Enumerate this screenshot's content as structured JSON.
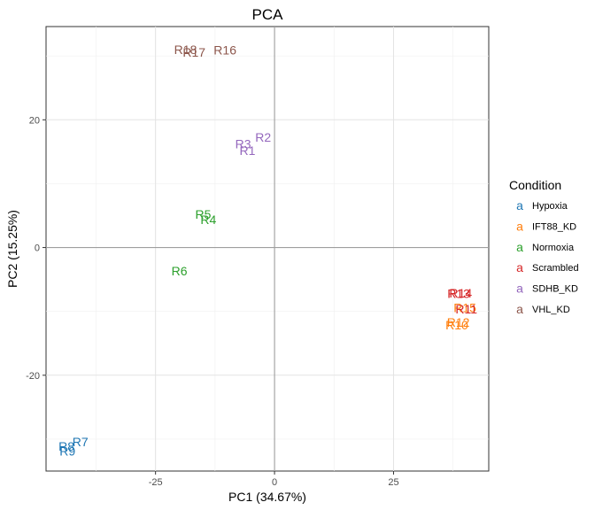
{
  "chart_data": {
    "type": "scatter",
    "title": "PCA",
    "xlabel": "PC1 (34.67%)",
    "ylabel": "PC2 (15.25%)",
    "xlim": [
      -48,
      45
    ],
    "ylim": [
      -35,
      34.6
    ],
    "xticks": [
      -25,
      0,
      25
    ],
    "xtick_labels": [
      "-25",
      "0",
      "25"
    ],
    "yticks": [
      -20,
      0,
      20
    ],
    "ytick_labels": [
      "-20",
      "0",
      "20"
    ],
    "grid": true,
    "zero_lines": true,
    "legend": {
      "title": "Condition",
      "placement": "right",
      "key_glyph": "a"
    },
    "series": [
      {
        "name": "Hypoxia",
        "color": "#1f77b4",
        "points": [
          {
            "label": "R7",
            "x": -40.8,
            "y": -30.4
          },
          {
            "label": "R8",
            "x": -43.7,
            "y": -31.1
          },
          {
            "label": "R9",
            "x": -43.5,
            "y": -31.9
          }
        ]
      },
      {
        "name": "IFT88_KD",
        "color": "#ff7f0e",
        "points": [
          {
            "label": "R10",
            "x": 38.3,
            "y": -12.1
          },
          {
            "label": "R12",
            "x": 38.6,
            "y": -11.7
          },
          {
            "label": "R15",
            "x": 40.0,
            "y": -9.4
          }
        ]
      },
      {
        "name": "Normoxia",
        "color": "#2ca02c",
        "points": [
          {
            "label": "R4",
            "x": -13.9,
            "y": 4.4
          },
          {
            "label": "R5",
            "x": -15.0,
            "y": 5.2
          },
          {
            "label": "R6",
            "x": -20.0,
            "y": -3.7
          }
        ]
      },
      {
        "name": "Scrambled",
        "color": "#d62728",
        "points": [
          {
            "label": "R11",
            "x": 40.3,
            "y": -9.6
          },
          {
            "label": "R13",
            "x": 38.7,
            "y": -7.2
          },
          {
            "label": "R14",
            "x": 39.1,
            "y": -7.1
          }
        ]
      },
      {
        "name": "SDHB_KD",
        "color": "#9467bd",
        "points": [
          {
            "label": "R1",
            "x": -5.7,
            "y": 15.2
          },
          {
            "label": "R2",
            "x": -2.4,
            "y": 17.3
          },
          {
            "label": "R3",
            "x": -6.6,
            "y": 16.2
          }
        ]
      },
      {
        "name": "VHL_KD",
        "color": "#8c564b",
        "points": [
          {
            "label": "R16",
            "x": -10.4,
            "y": 30.9
          },
          {
            "label": "R17",
            "x": -16.9,
            "y": 30.6
          },
          {
            "label": "R18",
            "x": -18.7,
            "y": 31.0
          }
        ]
      }
    ]
  }
}
